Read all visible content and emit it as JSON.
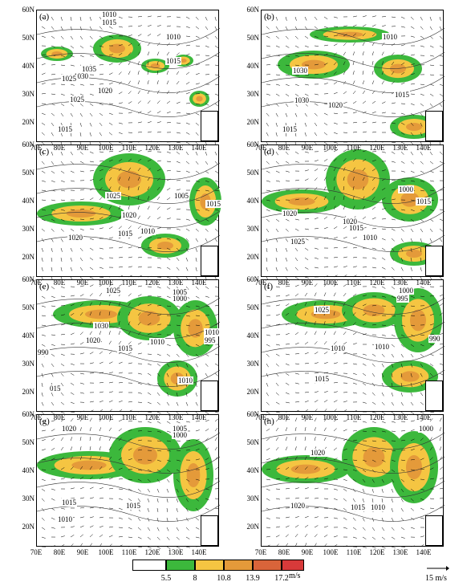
{
  "panels": [
    {
      "label": "(a)",
      "contours": [
        "1010",
        "1015",
        "1010",
        "1015",
        "1035",
        "1030",
        "1025",
        "1020",
        "1025",
        "1015"
      ]
    },
    {
      "label": "(b)",
      "contours": [
        "1010",
        "1030",
        "1030",
        "1020",
        "1015",
        "1015"
      ]
    },
    {
      "label": "(c)",
      "contours": [
        "1025",
        "1020",
        "1005",
        "1015",
        "1015",
        "1010",
        "1020"
      ]
    },
    {
      "label": "(d)",
      "contours": [
        "1000",
        "1015",
        "1020",
        "1020",
        "1015",
        "1010",
        "1025"
      ]
    },
    {
      "label": "(e)",
      "contours": [
        "1025",
        "1005",
        "1000",
        "1030",
        "1020",
        "1015",
        "1010",
        "1010",
        "995",
        "990",
        "015",
        "1010"
      ]
    },
    {
      "label": "(f)",
      "contours": [
        "1000",
        "995",
        "1025",
        "990",
        "1010",
        "1010",
        "1015"
      ]
    },
    {
      "label": "(g)",
      "contours": [
        "1020",
        "1005",
        "1000",
        "1015",
        "1015",
        "1010"
      ]
    },
    {
      "label": "(h)",
      "contours": [
        "1000",
        "1020",
        "1020",
        "1015",
        "1010"
      ]
    }
  ],
  "axes": {
    "lat_labels": [
      "60N",
      "50N",
      "40N",
      "30N",
      "20N"
    ],
    "lon_labels": [
      "70E",
      "80E",
      "90E",
      "100E",
      "110E",
      "120E",
      "130E",
      "140E"
    ]
  },
  "legend": {
    "ticks": [
      "5.5",
      "8",
      "10.8",
      "13.9",
      "17.2"
    ],
    "unit": "m/s",
    "colors": [
      "#ffffff",
      "#3cb83c",
      "#f5c542",
      "#e49a3a",
      "#d9643a",
      "#d83a3a"
    ],
    "reference_vector": "15 m/s"
  }
}
